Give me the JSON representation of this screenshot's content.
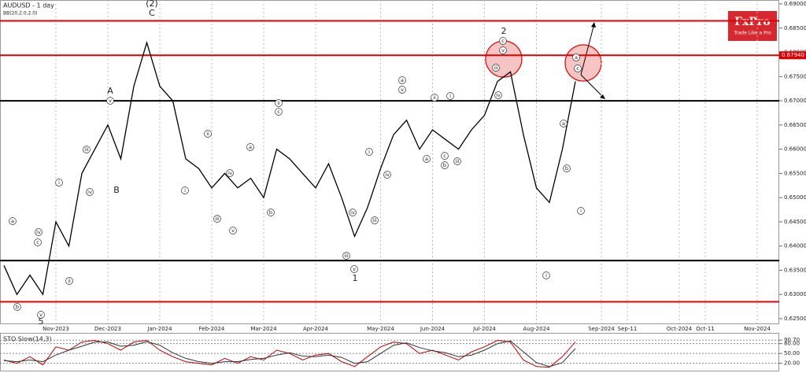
{
  "chart_data": [
    {
      "type": "line",
      "title": "AUDUSD - 1 day",
      "subtitle": "BB(20,2.0,2.0)",
      "categories": [
        null,
        null,
        null,
        null,
        "Nov-2023",
        null,
        null,
        null,
        "Dec-2023",
        null,
        null,
        null,
        "Jan-2024",
        null,
        null,
        null,
        "Feb-2024",
        null,
        null,
        null,
        "Mar-2024",
        null,
        null,
        null,
        "Apr-2024",
        null,
        null,
        null,
        null,
        "May-2024",
        null,
        null,
        null,
        "Jun-2024",
        null,
        null,
        null,
        "Jul-2024",
        null,
        null,
        null,
        "Aug-2024",
        null,
        null,
        null,
        null,
        "Sep-2024",
        null,
        "Sep-11",
        null,
        null,
        null,
        "Oct-2024",
        null,
        "Oct-11",
        null,
        null,
        null,
        "Nov-2024",
        null
      ],
      "series": [
        {
          "color": "#000000",
          "values": [
            0.636,
            0.63,
            0.634,
            0.63,
            0.645,
            0.64,
            0.655,
            0.66,
            0.665,
            0.658,
            0.673,
            0.682,
            0.673,
            0.67,
            0.658,
            0.656,
            0.652,
            0.655,
            0.652,
            0.654,
            0.65,
            0.66,
            0.658,
            0.655,
            0.652,
            0.657,
            0.65,
            0.642,
            0.648,
            0.656,
            0.663,
            0.666,
            0.66,
            0.664,
            0.662,
            0.66,
            0.664,
            0.667,
            0.674,
            0.676,
            0.663,
            0.652,
            0.649,
            0.66,
            0.674,
            null,
            null,
            null,
            null,
            null,
            null,
            null,
            null,
            null,
            null,
            null,
            null,
            null,
            null,
            null
          ]
        }
      ],
      "ylim": [
        0.625,
        0.69
      ],
      "yticks": [
        {
          "value": 0.69,
          "label": "0.69000"
        },
        {
          "value": 0.685,
          "label": "0.68500"
        },
        {
          "value": 0.68,
          "label": "0.68000"
        },
        {
          "value": 0.675,
          "label": "0.67500"
        },
        {
          "value": 0.67,
          "label": "0.67000"
        },
        {
          "value": 0.665,
          "label": "0.66500"
        },
        {
          "value": 0.66,
          "label": "0.66000"
        },
        {
          "value": 0.655,
          "label": "0.65500"
        },
        {
          "value": 0.65,
          "label": "0.65000"
        },
        {
          "value": 0.645,
          "label": "0.64500"
        },
        {
          "value": 0.64,
          "label": "0.64000"
        },
        {
          "value": 0.635,
          "label": "0.63500"
        },
        {
          "value": 0.63,
          "label": "0.63000"
        },
        {
          "value": 0.625,
          "label": "0.62500"
        }
      ],
      "levels": [
        {
          "value": 0.6865,
          "color": "#e00000"
        },
        {
          "value": 0.6794,
          "color": "#e00000",
          "label": "0.67940"
        },
        {
          "value": 0.67,
          "color": "#000000"
        },
        {
          "value": 0.637,
          "color": "#000000"
        },
        {
          "value": 0.6285,
          "color": "#e00000"
        }
      ],
      "wave_labels": [
        "(2)",
        "C",
        "A",
        "B",
        "2",
        "1",
        "5"
      ],
      "circled_labels": [
        "a",
        "b",
        "c",
        "iv",
        "v",
        "i",
        "ii",
        "iii",
        "iv",
        "v",
        "i",
        "ii",
        "iii",
        "iv",
        "v",
        "a",
        "b",
        "c",
        "ii",
        "iii",
        "v",
        "i",
        "iv",
        "iii",
        "iv",
        "a",
        "v",
        "a",
        "b",
        "c",
        "iii",
        "i",
        "ii",
        "iii",
        "iv",
        "c",
        "v",
        "a",
        "b",
        "a",
        "c",
        "i",
        "i"
      ]
    },
    {
      "type": "line",
      "title": "STO Slow(14,3)",
      "series": [
        {
          "color": "#c00000",
          "values": [
            30,
            20,
            40,
            15,
            70,
            60,
            85,
            90,
            80,
            60,
            85,
            90,
            60,
            40,
            25,
            20,
            15,
            35,
            20,
            40,
            30,
            60,
            50,
            30,
            45,
            50,
            25,
            10,
            40,
            70,
            85,
            80,
            50,
            60,
            45,
            30,
            55,
            70,
            90,
            85,
            30,
            10,
            8,
            40,
            85
          ]
        },
        {
          "color": "#333333",
          "values": [
            28,
            25,
            30,
            25,
            45,
            60,
            72,
            85,
            85,
            72,
            75,
            86,
            75,
            52,
            35,
            25,
            20,
            25,
            25,
            32,
            35,
            45,
            52,
            42,
            40,
            45,
            38,
            20,
            25,
            50,
            75,
            82,
            68,
            58,
            52,
            40,
            45,
            60,
            80,
            88,
            55,
            22,
            10,
            22,
            65
          ]
        }
      ],
      "ylim": [
        0,
        100
      ],
      "yticks": [
        {
          "value": 90.7,
          "label": "90.70"
        },
        {
          "value": 80,
          "label": "80.00"
        },
        {
          "value": 50,
          "label": "50.00"
        },
        {
          "value": 20,
          "label": "20.00"
        }
      ]
    }
  ],
  "logo": {
    "brand": "FxPro",
    "tagline": "Trade Like a Pro"
  }
}
